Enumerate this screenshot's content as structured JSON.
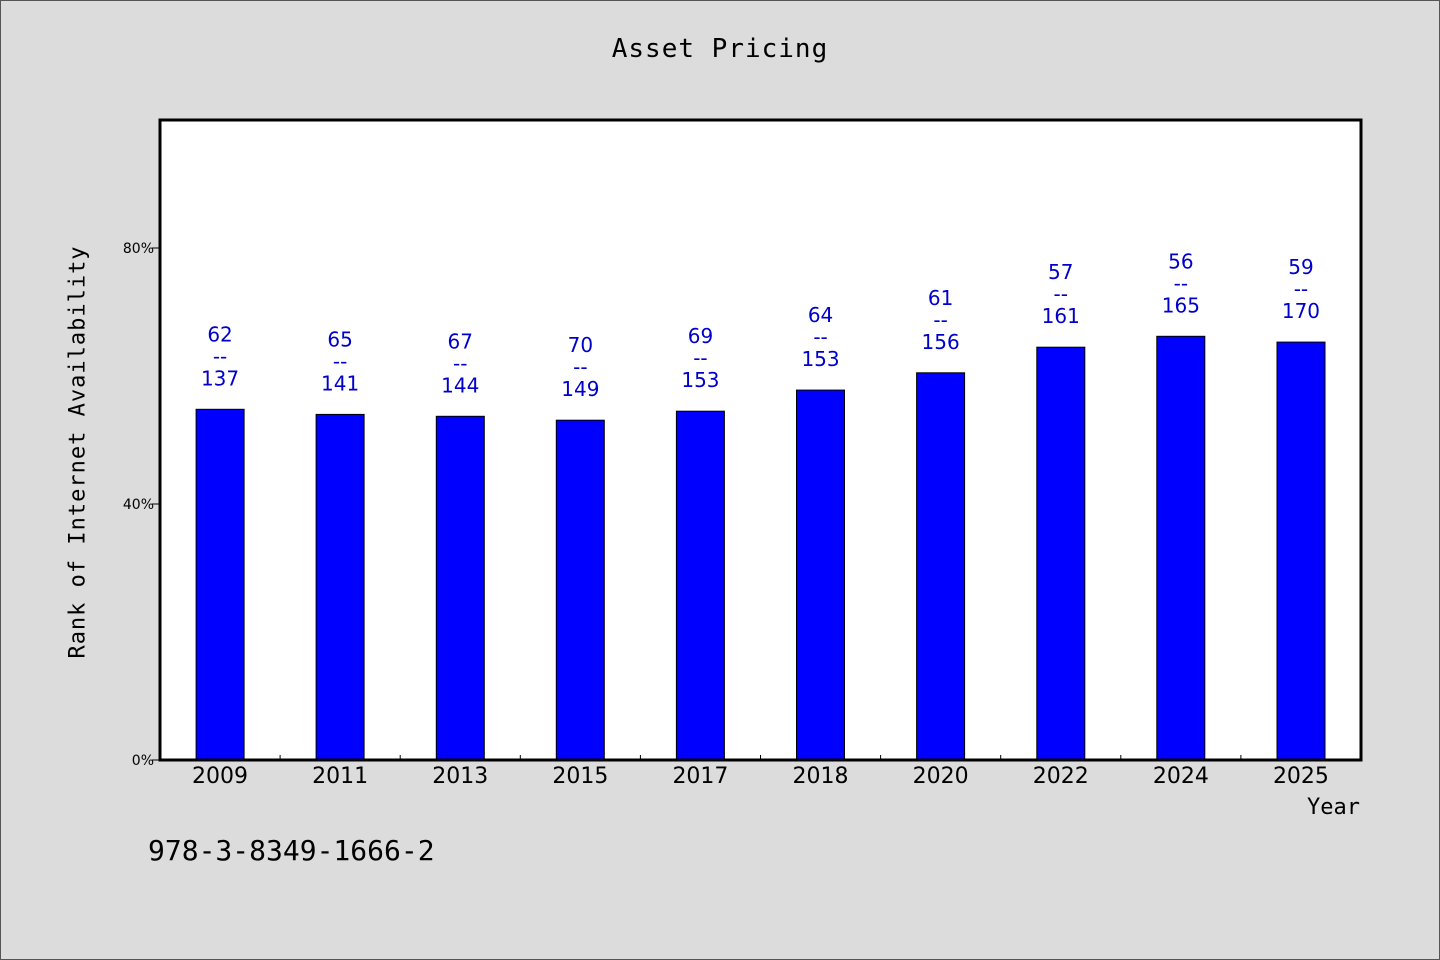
{
  "chart_data": {
    "type": "bar",
    "title": "Asset Pricing",
    "xlabel": "Year",
    "ylabel": "Rank of Internet Availability",
    "ylim": [
      0,
      100
    ],
    "yticks": [
      "0%",
      "40%",
      "80%"
    ],
    "categories": [
      "2009",
      "2011",
      "2013",
      "2015",
      "2017",
      "2018",
      "2020",
      "2022",
      "2024",
      "2025"
    ],
    "values": [
      54.8,
      54.0,
      53.7,
      53.1,
      54.5,
      57.8,
      60.5,
      64.5,
      66.2,
      65.3
    ],
    "labels_top": [
      "62",
      "65",
      "67",
      "70",
      "69",
      "64",
      "61",
      "57",
      "56",
      "59"
    ],
    "labels_bottom": [
      "137",
      "141",
      "144",
      "149",
      "153",
      "153",
      "156",
      "161",
      "165",
      "170"
    ],
    "separator": "--",
    "bar_color": "#0000ff",
    "label_color": "#0000cc",
    "grid": false
  },
  "footer": {
    "isbn": "978-3-8349-1666-2"
  }
}
